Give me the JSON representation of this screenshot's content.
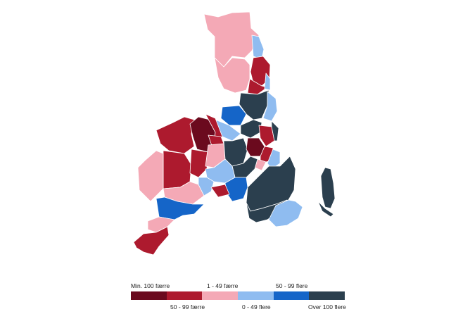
{
  "map": {
    "region_classes": [
      "min100",
      "r50_99",
      "r1_49",
      "b0_49",
      "b50_99",
      "over100"
    ]
  },
  "legend": {
    "items": [
      {
        "key": "min100",
        "label": "Min. 100 færre",
        "color": "#6b0a1e"
      },
      {
        "key": "r50_99",
        "label": "50 - 99 færre",
        "color": "#ad1a2e"
      },
      {
        "key": "r1_49",
        "label": "1 - 49 færre",
        "color": "#f4a9b6"
      },
      {
        "key": "b0_49",
        "label": "0 - 49 flere",
        "color": "#8fbcf0"
      },
      {
        "key": "b50_99",
        "label": "50 - 99 flere",
        "color": "#1565c8"
      },
      {
        "key": "over100",
        "label": "Over 100 flere",
        "color": "#2b3f4e"
      }
    ]
  }
}
